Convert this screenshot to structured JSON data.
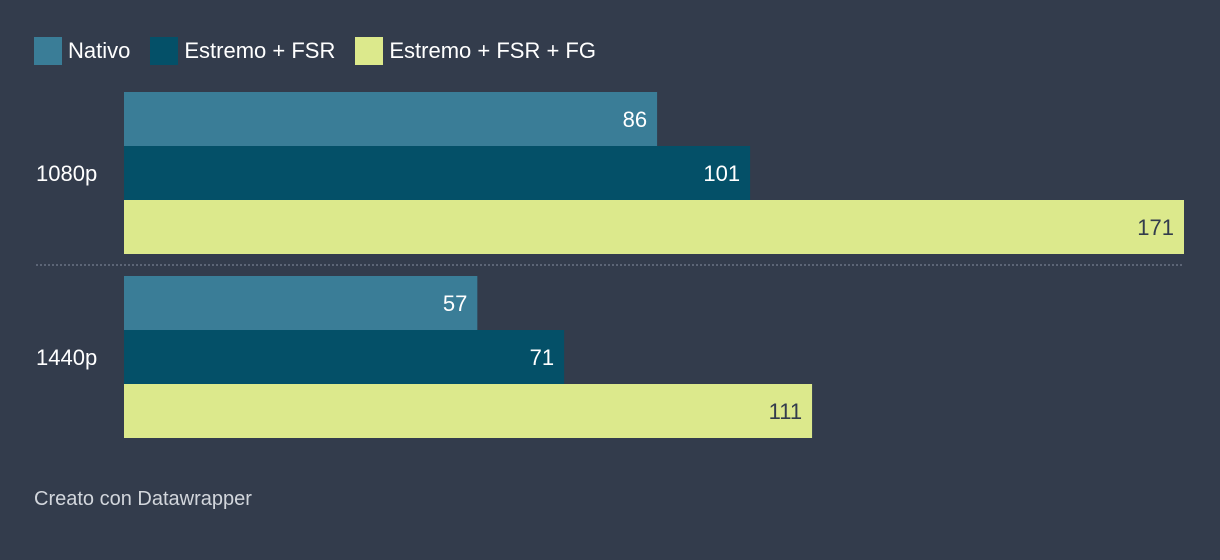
{
  "chart_data": {
    "type": "bar",
    "orientation": "horizontal",
    "categories": [
      "1080p",
      "1440p"
    ],
    "series": [
      {
        "name": "Nativo",
        "values": [
          86,
          57
        ],
        "color": "#3a7d97",
        "label_color": "#ffffff"
      },
      {
        "name": "Estremo + FSR",
        "values": [
          101,
          71
        ],
        "color": "#045068",
        "label_color": "#ffffff"
      },
      {
        "name": "Estremo + FSR + FG",
        "values": [
          171,
          111
        ],
        "color": "#dce98c",
        "label_color": "#333c4c"
      }
    ],
    "xlim": [
      0,
      171
    ],
    "grid": false,
    "legend": "top-left"
  },
  "footer": {
    "credit": "Creato con Datawrapper"
  },
  "colors": {
    "background": "#333c4c",
    "text": "#ffffff",
    "separator": "#6a7383"
  }
}
